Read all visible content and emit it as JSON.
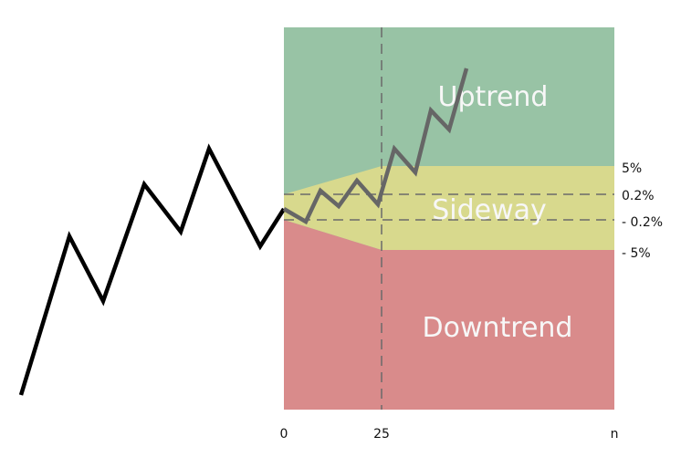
{
  "zones": {
    "uptrend": {
      "label": "Uptrend",
      "color": "#98c3a5"
    },
    "sideway": {
      "label": "Sideway",
      "color": "#d8d98d"
    },
    "downtrend": {
      "label": "Downtrend",
      "color": "#d98b8b"
    }
  },
  "thresholds": {
    "upper_wide": "5%",
    "upper_narrow": "0.2%",
    "lower_narrow": "- 0.2%",
    "lower_wide": "- 5%"
  },
  "x_axis": {
    "start": "0",
    "mid": "25",
    "end": "n"
  },
  "colors": {
    "history_line": "#000000",
    "forecast_line": "#666666",
    "dashed_line": "#6b6b6b"
  }
}
